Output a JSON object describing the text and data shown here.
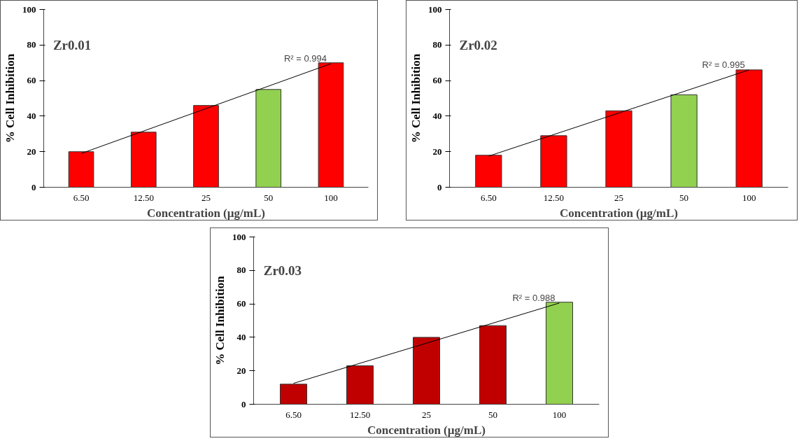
{
  "chart_data": [
    {
      "type": "bar",
      "title": "Zr0.01",
      "xlabel": "Concentration (µg/mL)",
      "ylabel": "% Cell Inhibition",
      "categories": [
        "6.50",
        "12.50",
        "25",
        "50",
        "100"
      ],
      "ylim": [
        0,
        100
      ],
      "yticks": [
        0,
        20,
        40,
        60,
        80,
        100
      ],
      "grid": false,
      "series": [
        {
          "values": [
            20,
            31,
            46,
            55,
            70
          ],
          "colors": [
            "#ff0000",
            "#ff0000",
            "#ff0000",
            "#92d050",
            "#ff0000"
          ]
        },
        {
          "type": "line",
          "x": [
            "6.50",
            "100"
          ],
          "values": [
            19,
            69.5
          ],
          "color": "#000000"
        }
      ],
      "annotations": [
        {
          "text": "R² = 0.994",
          "x": "100",
          "y": 69.5
        }
      ]
    },
    {
      "type": "bar",
      "title": "Zr0.02",
      "xlabel": "Concentration (µg/mL)",
      "ylabel": "% Cell Inhibition",
      "categories": [
        "6.50",
        "12.50",
        "25",
        "50",
        "100"
      ],
      "ylim": [
        0,
        100
      ],
      "yticks": [
        0,
        20,
        40,
        60,
        80,
        100
      ],
      "grid": false,
      "series": [
        {
          "values": [
            18,
            29,
            43,
            52,
            66
          ],
          "colors": [
            "#ff0000",
            "#ff0000",
            "#ff0000",
            "#92d050",
            "#ff0000"
          ]
        },
        {
          "type": "line",
          "x": [
            "6.50",
            "100"
          ],
          "values": [
            17.5,
            66
          ],
          "color": "#000000"
        }
      ],
      "annotations": [
        {
          "text": "R² = 0.995",
          "x": "100",
          "y": 66
        }
      ]
    },
    {
      "type": "bar",
      "title": "Zr0.03",
      "xlabel": "Concentration (µg/mL)",
      "ylabel": "% Cell Inhibition",
      "categories": [
        "6.50",
        "12.50",
        "25",
        "50",
        "100"
      ],
      "ylim": [
        0,
        100
      ],
      "yticks": [
        0,
        20,
        40,
        60,
        80,
        100
      ],
      "grid": false,
      "series": [
        {
          "values": [
            12,
            23,
            40,
            47,
            61
          ],
          "colors": [
            "#c00000",
            "#c00000",
            "#c00000",
            "#c00000",
            "#92d050"
          ]
        },
        {
          "type": "line",
          "x": [
            "6.50",
            "100"
          ],
          "values": [
            12.5,
            60.5
          ],
          "color": "#000000"
        }
      ],
      "annotations": [
        {
          "text": "R² = 0.988",
          "x": "100",
          "y": 60.5
        }
      ]
    }
  ]
}
